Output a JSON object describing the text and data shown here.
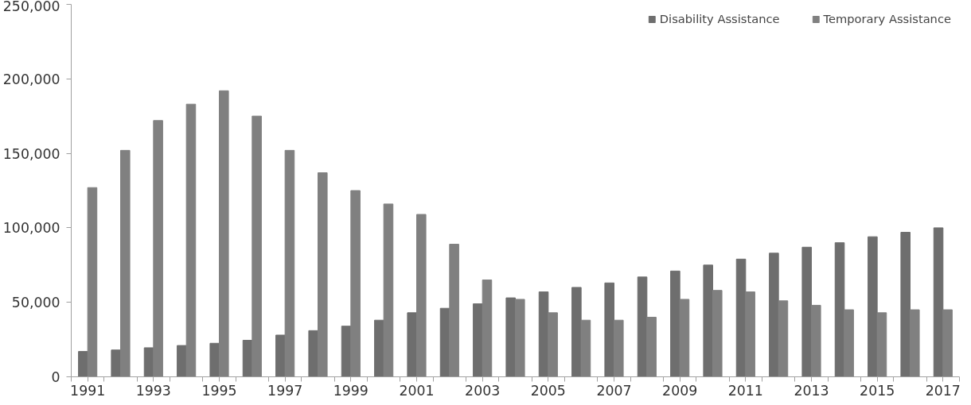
{
  "chart_data": {
    "type": "bar",
    "categories": [
      "1991",
      null,
      "1993",
      null,
      "1995",
      null,
      "1997",
      null,
      "1999",
      null,
      "2001",
      null,
      "2003",
      null,
      "2005",
      null,
      "2007",
      null,
      "2009",
      null,
      "2011",
      null,
      "2013",
      null,
      "2015",
      null,
      "2017"
    ],
    "series": [
      {
        "name": "Disability Assistance",
        "color": "#6e6e6e",
        "values": [
          17000,
          18000,
          19500,
          21000,
          22500,
          24500,
          28000,
          31000,
          34000,
          38000,
          43000,
          46000,
          49000,
          53000,
          57000,
          60000,
          63000,
          67000,
          71000,
          75000,
          79000,
          83000,
          87000,
          90000,
          94000,
          97000,
          100000
        ]
      },
      {
        "name": "Temporary Assistance",
        "color": "#808080",
        "values": [
          127000,
          152000,
          172000,
          183000,
          192000,
          175000,
          152000,
          137000,
          125000,
          116000,
          109000,
          89000,
          65000,
          52000,
          43000,
          38000,
          38000,
          40000,
          52000,
          58000,
          57000,
          51000,
          48000,
          45000,
          43000,
          45000,
          45000
        ]
      }
    ],
    "ylim": [
      0,
      250000
    ],
    "yticks": [
      {
        "value": 0,
        "label": "0"
      },
      {
        "value": 50000,
        "label": "50,000"
      },
      {
        "value": 100000,
        "label": "100,000"
      },
      {
        "value": 150000,
        "label": "150,000"
      },
      {
        "value": 200000,
        "label": "200,000"
      },
      {
        "value": 250000,
        "label": "250,000"
      }
    ],
    "grid": false,
    "legend": "top right"
  }
}
